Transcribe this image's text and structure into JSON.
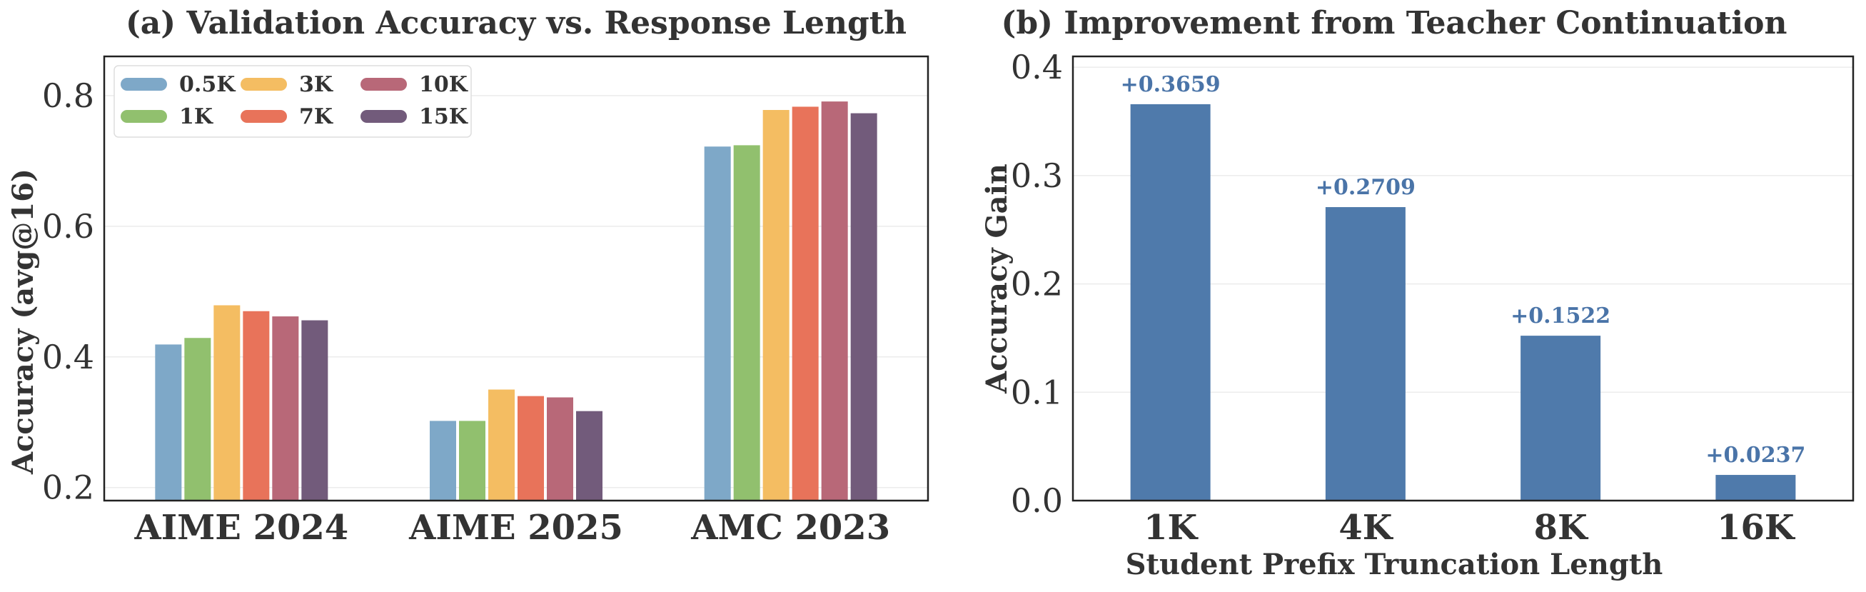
{
  "chart_data": [
    {
      "type": "bar",
      "title": "(a) Validation Accuracy vs. Response Length",
      "xlabel": "",
      "ylabel": "Accuracy (avg@16)",
      "ylim": [
        0.18,
        0.86
      ],
      "yticks": [
        0.2,
        0.4,
        0.6,
        0.8
      ],
      "ytick_labels": [
        "0.2",
        "0.4",
        "0.6",
        "0.8"
      ],
      "grid": "horizontal",
      "legend": {
        "placement": "top-left",
        "columns": 3
      },
      "categories": [
        "AIME 2024",
        "AIME 2025",
        "AMC 2023"
      ],
      "series": [
        {
          "name": "0.5K",
          "color": "#7ea8c8",
          "values": [
            0.419,
            0.302,
            0.722
          ]
        },
        {
          "name": "1K",
          "color": "#91c06e",
          "values": [
            0.429,
            0.302,
            0.724
          ]
        },
        {
          "name": "3K",
          "color": "#f4bd62",
          "values": [
            0.479,
            0.35,
            0.778
          ]
        },
        {
          "name": "7K",
          "color": "#e8735a",
          "values": [
            0.47,
            0.34,
            0.783
          ]
        },
        {
          "name": "10K",
          "color": "#b86878",
          "values": [
            0.462,
            0.338,
            0.791
          ]
        },
        {
          "name": "15K",
          "color": "#725b7b",
          "values": [
            0.456,
            0.317,
            0.773
          ]
        }
      ]
    },
    {
      "type": "bar",
      "title": "(b) Improvement from Teacher Continuation",
      "xlabel": "Student Prefix Truncation Length",
      "ylabel": "Accuracy Gain",
      "ylim": [
        0,
        0.41
      ],
      "yticks": [
        0,
        0.1,
        0.2,
        0.3,
        0.4
      ],
      "ytick_labels": [
        "0.0",
        "0.1",
        "0.2",
        "0.3",
        "0.4"
      ],
      "grid": "horizontal",
      "categories": [
        "1K",
        "4K",
        "8K",
        "16K"
      ],
      "values": [
        0.3659,
        0.2709,
        0.1522,
        0.0237
      ],
      "data_labels": [
        "+0.3659",
        "+0.2709",
        "+0.1522",
        "+0.0237"
      ],
      "bar_color": "#4f7aab",
      "label_color": "#4a74a8"
    }
  ]
}
